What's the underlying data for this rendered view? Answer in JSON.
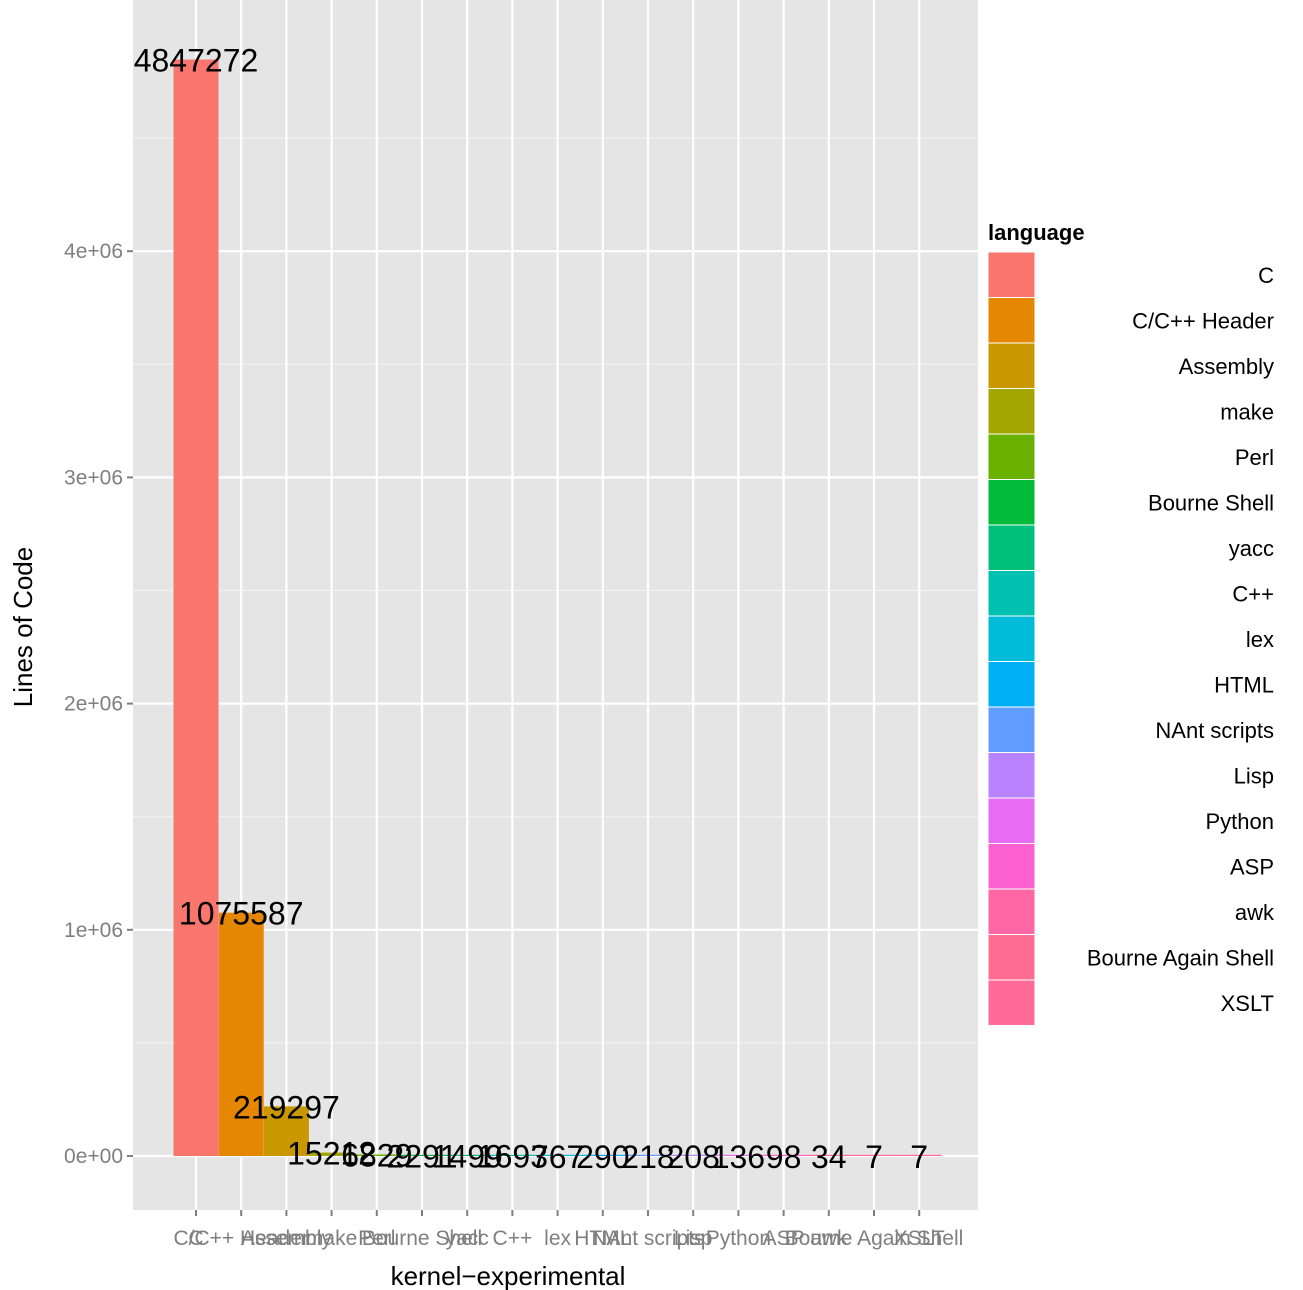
{
  "chart_data": {
    "type": "bar",
    "xlabel": "kernel−experimental",
    "ylabel": "Lines of Code",
    "ylim": [
      -210000,
      5050000
    ],
    "y_ticks": [
      {
        "value": 0,
        "label": "0e+00"
      },
      {
        "value": 1000000,
        "label": "1e+06"
      },
      {
        "value": 2000000,
        "label": "2e+06"
      },
      {
        "value": 3000000,
        "label": "3e+06"
      },
      {
        "value": 4000000,
        "label": "4e+06"
      }
    ],
    "grid": true,
    "legend": {
      "title": "language",
      "position": "right"
    },
    "categories": [
      "C",
      "C/C++ Header",
      "Assembly",
      "make",
      "Perl",
      "Bourne Shell",
      "yacc",
      "C++",
      "lex",
      "HTML",
      "NAnt scripts",
      "Lisp",
      "Python",
      "ASP",
      "awk",
      "Bourne Again Shell",
      "XSLT"
    ],
    "values": [
      4847272,
      1075587,
      219297,
      15212,
      6829,
      2291,
      1499,
      1693,
      767,
      290,
      218,
      208,
      136,
      98,
      34,
      7,
      7
    ],
    "data_labels": [
      "4847272",
      "1075587",
      "219297",
      "15212",
      "6829",
      "2291",
      "1499",
      "1693",
      "767",
      "290",
      "218",
      "208",
      "136",
      "98",
      "34",
      "7",
      "7"
    ],
    "colors": [
      "#F8766D",
      "#E58700",
      "#C99800",
      "#A3A500",
      "#6BB100",
      "#00BA38",
      "#00BF7D",
      "#00C0AF",
      "#00BCD8",
      "#00B0F6",
      "#619CFF",
      "#B983FF",
      "#E76BF3",
      "#FD61D1",
      "#FF67A4",
      "#FF6C91",
      "#FF6A98"
    ]
  }
}
